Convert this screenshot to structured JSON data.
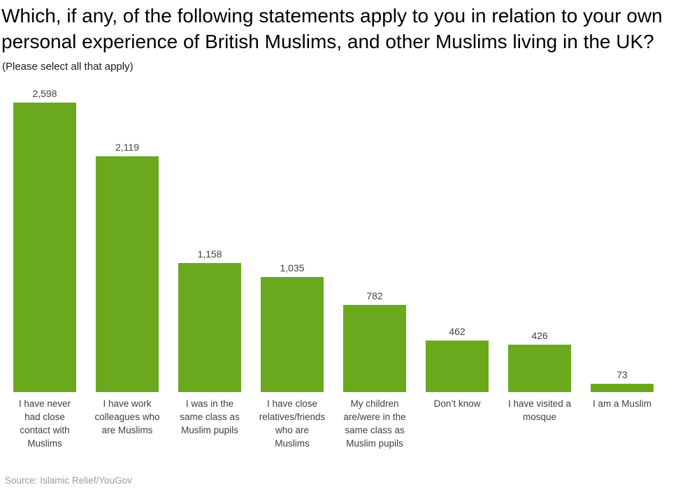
{
  "header": {
    "title_lines": [
      "Which, if any, of the following statements apply to you in relation to your own",
      "personal experience of British Muslims, and other Muslims living in the UK?"
    ],
    "subtitle": "(Please select all that apply)"
  },
  "chart_data": {
    "type": "bar",
    "title": "Which, if any, of the following statements apply to you in relation to your own personal experience of British Muslims, and other Muslims living in the UK?",
    "subtitle": "(Please select all that apply)",
    "categories": [
      "I have never had close contact with Muslims",
      "I have work colleagues who are Muslims",
      "I was in the same class as Muslim pupils",
      "I have close relatives/friends who are Muslims",
      "My children are/were in the same class as Muslim pupils",
      "Don’t know",
      "I have visited a mosque",
      "I am a Muslim"
    ],
    "values": [
      2598,
      2119,
      1158,
      1035,
      782,
      462,
      426,
      73
    ],
    "value_labels": [
      "2,598",
      "2,119",
      "1,158",
      "1,035",
      "782",
      "462",
      "426",
      "73"
    ],
    "ylim": [
      0,
      2598
    ],
    "bar_color": "#6aa91d",
    "grid": false,
    "legend": false,
    "value_label_position": "above-bar",
    "orientation": "vertical"
  },
  "footer": {
    "source": "Source: Islamic Relief/YouGov"
  },
  "colors": {
    "bar": "#6aa91d",
    "title_text": "#000000",
    "label_text": "#404040",
    "source_text": "#9b9b9b"
  }
}
